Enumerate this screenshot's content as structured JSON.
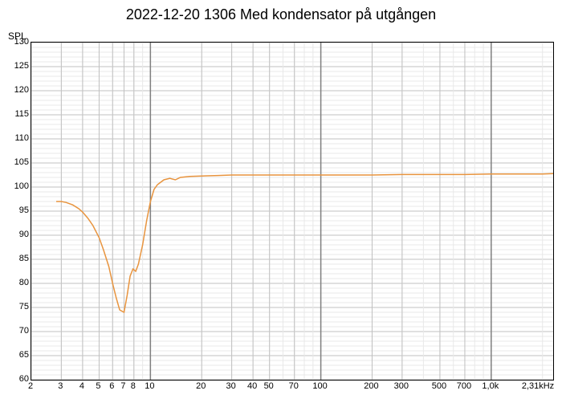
{
  "chart": {
    "type": "line",
    "title": "2022-12-20 1306 Med kondensator på utgången",
    "title_fontsize": 18,
    "y_axis_label": "SPL",
    "x_axis_unit_label": "2,31kHz",
    "background_color": "#ffffff",
    "grid_color_major": "#c0c0c0",
    "grid_color_minor": "#e8e8e8",
    "grid_color_bold": "#808080",
    "line_color": "#e8943e",
    "line_width": 1.5,
    "label_fontsize": 11,
    "ylim": [
      60,
      130
    ],
    "ytick_step_major": 5,
    "ytick_step_minor": 1,
    "y_ticks": [
      60,
      65,
      70,
      75,
      80,
      85,
      90,
      95,
      100,
      105,
      110,
      115,
      120,
      125,
      130
    ],
    "x_scale": "log",
    "xlim": [
      2,
      2310
    ],
    "x_ticks_major": [
      2,
      3,
      4,
      5,
      6,
      7,
      8,
      10,
      20,
      30,
      40,
      50,
      70,
      100,
      200,
      300,
      500,
      700,
      1000
    ],
    "x_tick_labels": [
      "2",
      "3",
      "4",
      "5",
      "6",
      "7",
      "8",
      "10",
      "20",
      "30",
      "40",
      "50",
      "70",
      "100",
      "200",
      "300",
      "500",
      "700",
      "1,0k"
    ],
    "x_ticks_bold": [
      10,
      100,
      1000
    ],
    "series": [
      {
        "name": "SPL",
        "color": "#e8943e",
        "data": [
          [
            2.8,
            97.0
          ],
          [
            3.0,
            97.0
          ],
          [
            3.2,
            96.8
          ],
          [
            3.5,
            96.3
          ],
          [
            3.8,
            95.5
          ],
          [
            4.0,
            94.8
          ],
          [
            4.3,
            93.5
          ],
          [
            4.6,
            92.0
          ],
          [
            5.0,
            89.5
          ],
          [
            5.3,
            87.0
          ],
          [
            5.7,
            83.5
          ],
          [
            6.0,
            80.0
          ],
          [
            6.3,
            77.0
          ],
          [
            6.6,
            74.5
          ],
          [
            7.0,
            74.0
          ],
          [
            7.3,
            77.5
          ],
          [
            7.6,
            81.5
          ],
          [
            7.9,
            83.0
          ],
          [
            8.2,
            82.5
          ],
          [
            8.5,
            84.0
          ],
          [
            9.0,
            88.0
          ],
          [
            9.5,
            93.0
          ],
          [
            10.0,
            97.0
          ],
          [
            10.5,
            99.5
          ],
          [
            11.0,
            100.5
          ],
          [
            12.0,
            101.5
          ],
          [
            13.0,
            101.8
          ],
          [
            14.0,
            101.5
          ],
          [
            15.0,
            102.0
          ],
          [
            17.0,
            102.2
          ],
          [
            20.0,
            102.3
          ],
          [
            25.0,
            102.4
          ],
          [
            30.0,
            102.5
          ],
          [
            40.0,
            102.5
          ],
          [
            50.0,
            102.5
          ],
          [
            70.0,
            102.5
          ],
          [
            100.0,
            102.5
          ],
          [
            200.0,
            102.5
          ],
          [
            300.0,
            102.6
          ],
          [
            500.0,
            102.6
          ],
          [
            700.0,
            102.6
          ],
          [
            1000.0,
            102.7
          ],
          [
            1500.0,
            102.7
          ],
          [
            2000.0,
            102.7
          ],
          [
            2310.0,
            102.8
          ]
        ]
      }
    ]
  }
}
